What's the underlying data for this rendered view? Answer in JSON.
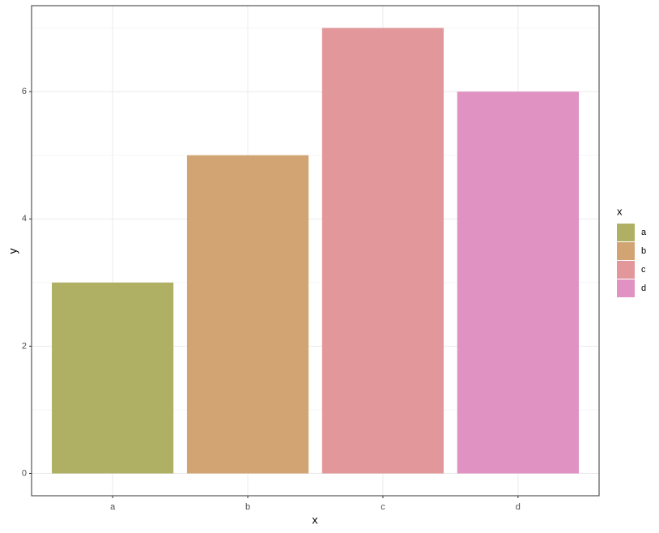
{
  "chart_data": {
    "type": "bar",
    "categories": [
      "a",
      "b",
      "c",
      "d"
    ],
    "values": [
      3,
      5,
      7,
      6
    ],
    "colors": [
      "#b0b064",
      "#d2a473",
      "#e2979a",
      "#e093c3"
    ],
    "x_label": "x",
    "y_label": "y",
    "ylim": [
      -0.35,
      7.35
    ],
    "yticks": [
      0,
      2,
      4,
      6
    ],
    "grid": true,
    "minor_grid": true,
    "legend": {
      "title": "x",
      "position": "right"
    }
  }
}
